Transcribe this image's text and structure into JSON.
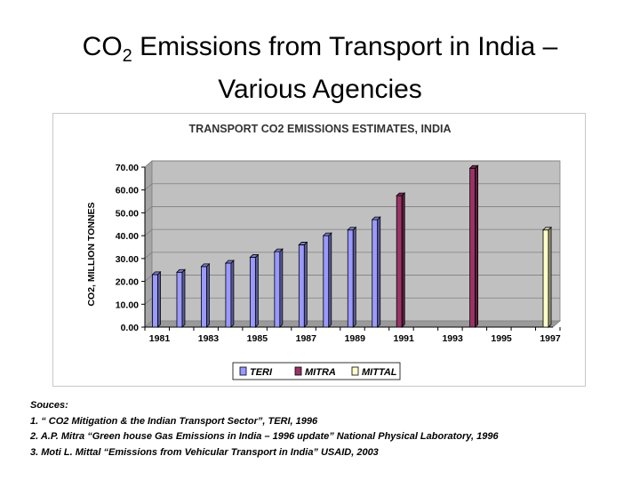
{
  "slide": {
    "title_line1_pre": "CO",
    "title_sub": "2",
    "title_line1_post": " Emissions from Transport in India –",
    "title_line2": "Various Agencies"
  },
  "chart_data": {
    "type": "bar",
    "title": "TRANSPORT CO2 EMISSIONS ESTIMATES, INDIA",
    "ylabel": "CO2, MILLION TONNES",
    "xlabel": "",
    "ylim": [
      0,
      70
    ],
    "yticks": [
      "0.00",
      "10.00",
      "20.00",
      "30.00",
      "40.00",
      "50.00",
      "60.00",
      "70.00"
    ],
    "xlim": [
      1981,
      1998
    ],
    "xticks": [
      "1981",
      "1983",
      "1985",
      "1987",
      "1989",
      "1991",
      "1993",
      "1995",
      "1997"
    ],
    "grid": true,
    "legend_position": "bottom",
    "series": [
      {
        "name": "TERI",
        "color": "#9999ff",
        "points": [
          {
            "x": 1981,
            "y": 23
          },
          {
            "x": 1982,
            "y": 24
          },
          {
            "x": 1983,
            "y": 26.5
          },
          {
            "x": 1984,
            "y": 28
          },
          {
            "x": 1985,
            "y": 30.5
          },
          {
            "x": 1986,
            "y": 33
          },
          {
            "x": 1987,
            "y": 36
          },
          {
            "x": 1988,
            "y": 40
          },
          {
            "x": 1989,
            "y": 42.5
          },
          {
            "x": 1990,
            "y": 47
          }
        ]
      },
      {
        "name": "MITRA",
        "color": "#993366",
        "points": [
          {
            "x": 1991,
            "y": 57.5
          },
          {
            "x": 1994,
            "y": 69.5
          }
        ]
      },
      {
        "name": "MITTAL",
        "color": "#ffffcc",
        "points": [
          {
            "x": 1997,
            "y": 42.5
          }
        ]
      }
    ]
  },
  "sources": {
    "heading": "Souces:",
    "items": [
      "1. “ CO2 Mitigation & the Indian Transport Sector”, TERI, 1996",
      "2. A.P. Mitra “Green house Gas Emissions in India – 1996 update” National Physical Laboratory, 1996",
      "3. Moti L. Mittal “Emissions from Vehicular Transport in India” USAID, 2003"
    ]
  }
}
